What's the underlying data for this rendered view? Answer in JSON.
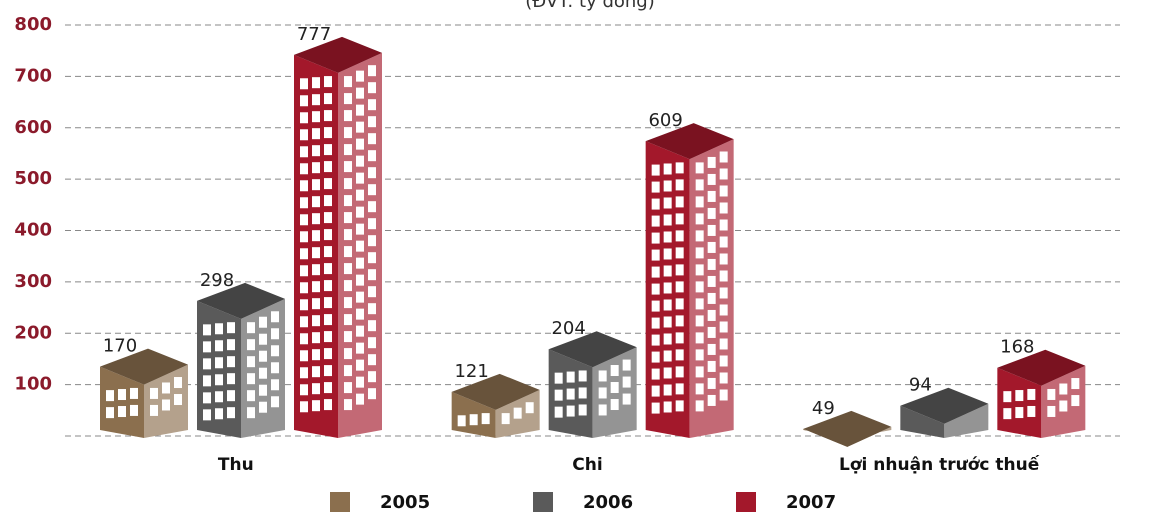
{
  "chart_data": {
    "type": "bar3d",
    "subtitle": "(ĐVT: tỷ đồng)",
    "categories": [
      "Thu",
      "Chi",
      "Lợi nhuận trước thuế"
    ],
    "series": [
      {
        "name": "2005",
        "color": "#8b6f4e",
        "values": [
          170,
          121,
          49
        ]
      },
      {
        "name": "2006",
        "color": "#5a5a5a",
        "values": [
          298,
          204,
          94
        ]
      },
      {
        "name": "2007",
        "color": "#a3182b",
        "values": [
          777,
          609,
          168
        ]
      }
    ],
    "ylim": [
      0,
      800
    ],
    "yticks": [
      100,
      200,
      300,
      400,
      500,
      600,
      700,
      800
    ],
    "grid": true,
    "legend": "bottom"
  }
}
